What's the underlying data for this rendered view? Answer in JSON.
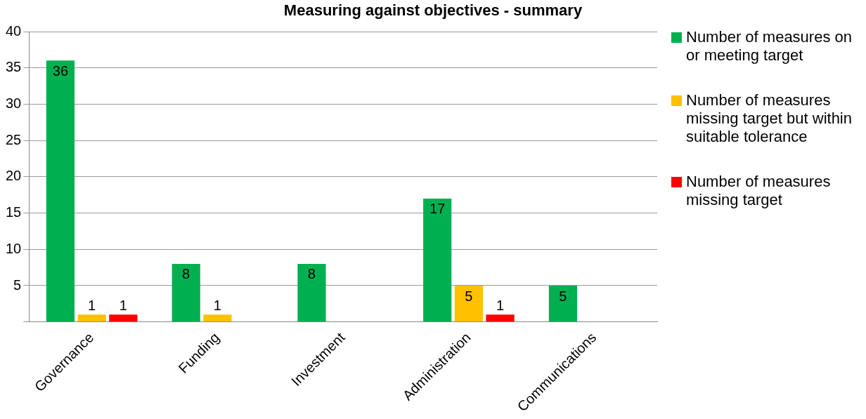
{
  "chart_data": {
    "type": "bar",
    "title": "Measuring against objectives - summary",
    "categories": [
      "Governance",
      "Funding",
      "Investment",
      "Administration",
      "Communications"
    ],
    "series": [
      {
        "name": "Number of measures on or meeting target",
        "color": "#00b050",
        "values": [
          36,
          8,
          8,
          17,
          5
        ],
        "value_labels": [
          "36",
          "8",
          "8",
          "17",
          "5"
        ]
      },
      {
        "name": "Number of measures missing target but within suitable tolerance",
        "color": "#ffc000",
        "values": [
          1,
          1,
          0,
          5,
          0
        ],
        "value_labels": [
          "1",
          "1",
          null,
          "5",
          null
        ]
      },
      {
        "name": "Number of measures missing target",
        "color": "#ff0000",
        "values": [
          1,
          0,
          0,
          1,
          0
        ],
        "value_labels": [
          "1",
          null,
          null,
          "1",
          null
        ]
      }
    ],
    "ylim": [
      0,
      40
    ],
    "yticks": [
      {
        "value": 0,
        "label": null
      },
      5,
      10,
      15,
      20,
      25,
      30,
      35,
      40
    ],
    "grid": "y",
    "legend": "right"
  }
}
